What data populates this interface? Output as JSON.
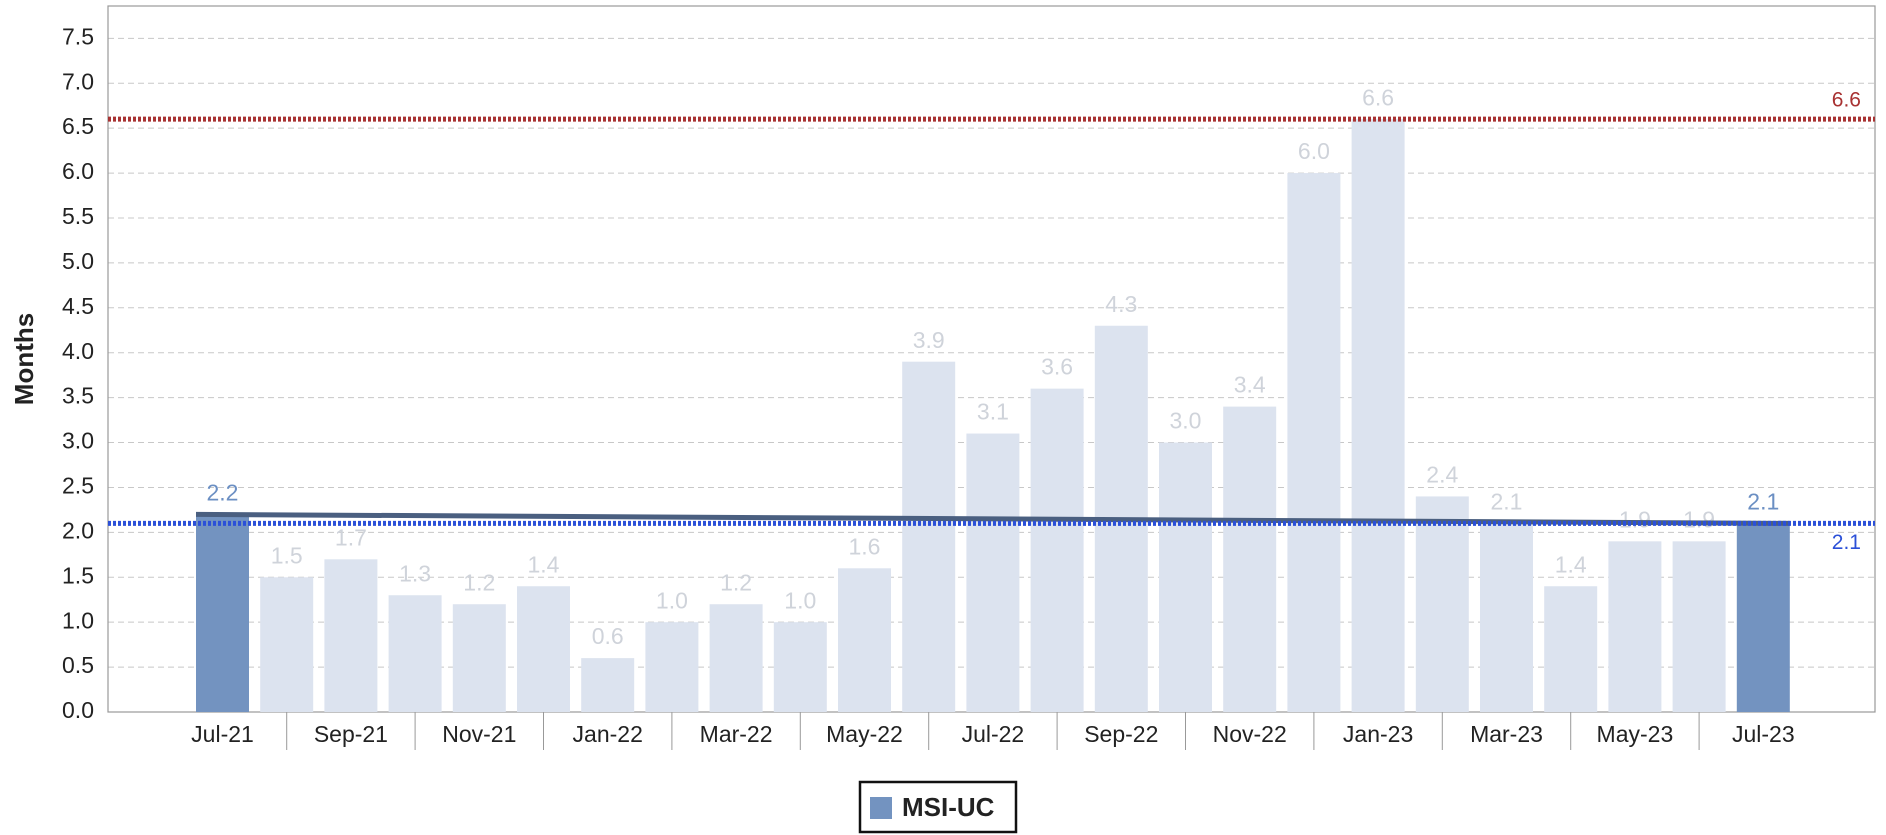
{
  "chart_data": {
    "type": "bar",
    "y_label": "Months",
    "categories": [
      "Jul-21",
      null,
      "Sep-21",
      null,
      "Nov-21",
      null,
      "Jan-22",
      null,
      "Mar-22",
      null,
      "May-22",
      null,
      "Jul-22",
      null,
      "Sep-22",
      null,
      "Nov-22",
      null,
      "Jan-23",
      null,
      "Mar-23",
      null,
      "May-23",
      null,
      "Jul-23"
    ],
    "series": [
      {
        "name": "MSI-UC",
        "color": "#7393c0",
        "other_color": "#dce3ef",
        "highlight": [
          0,
          24
        ],
        "values": [
          2.2,
          1.5,
          1.7,
          1.3,
          1.2,
          1.4,
          0.6,
          1.0,
          1.2,
          1.0,
          1.6,
          3.9,
          3.1,
          3.6,
          4.3,
          3.0,
          3.4,
          6.0,
          6.6,
          2.4,
          2.1,
          1.4,
          1.9,
          1.9,
          2.1
        ],
        "value_labels": [
          "2.2",
          "1.5",
          "1.7",
          "1.3",
          "1.2",
          "1.4",
          "0.6",
          "1.0",
          "1.2",
          "1.0",
          "1.6",
          "3.9",
          "3.1",
          "3.6",
          "4.3",
          "3.0",
          "3.4",
          "6.0",
          "6.6",
          "2.4",
          "2.1",
          "1.4",
          "1.9",
          "1.9",
          "2.1"
        ]
      }
    ],
    "trend_color": "#4a5f80",
    "reference_lines": [
      {
        "value": 6.6,
        "color": "#a83232"
      },
      {
        "value": 2.1,
        "color": "#2b50d8"
      }
    ],
    "ylim": [
      0,
      7.86
    ],
    "yticks": [
      {
        "value": 0,
        "label": "0.0"
      },
      0.5,
      {
        "value": 1,
        "label": "1.0"
      },
      1.5,
      {
        "value": 2,
        "label": "2.0"
      },
      2.5,
      {
        "value": 3,
        "label": "3.0"
      },
      3.5,
      {
        "value": 4,
        "label": "4.0"
      },
      4.5,
      {
        "value": 5,
        "label": "5.0"
      },
      5.5,
      {
        "value": 6,
        "label": "6.0"
      },
      6.5,
      {
        "value": 7,
        "label": "7.0"
      },
      7.5
    ],
    "grid": true
  }
}
